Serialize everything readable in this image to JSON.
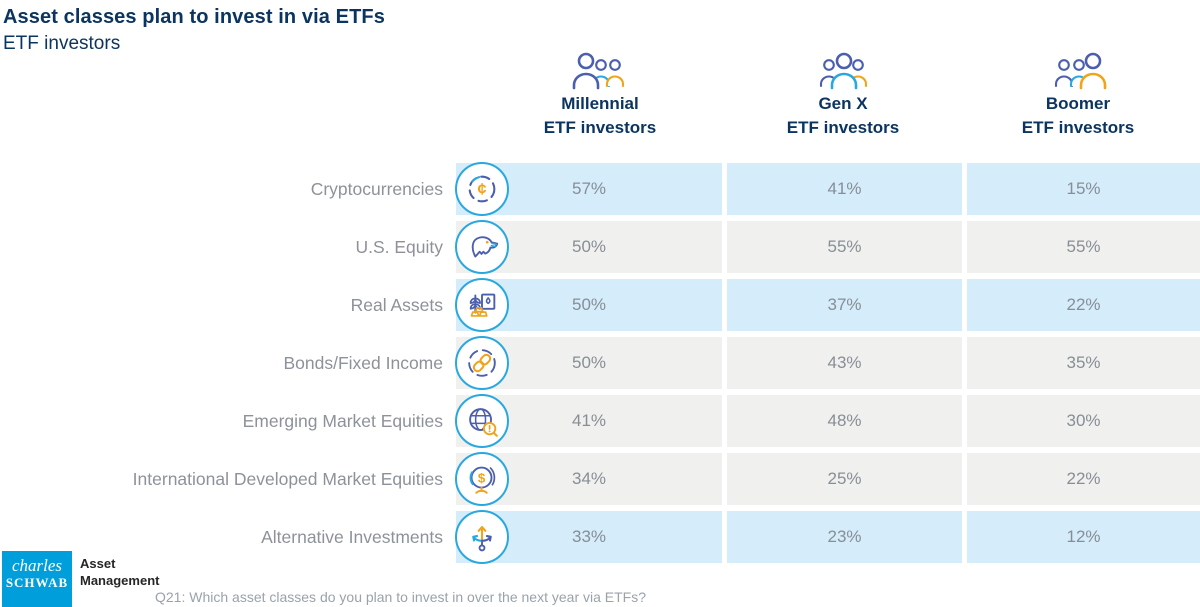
{
  "title": "Asset classes plan to invest in via ETFs",
  "subtitle": "ETF investors",
  "columns": [
    {
      "line1": "Millennial",
      "line2": "ETF investors",
      "icon": "millennial-group-icon",
      "highlight_index": 0
    },
    {
      "line1": "Gen X",
      "line2": "ETF investors",
      "icon": "genx-group-icon",
      "highlight_index": 1
    },
    {
      "line1": "Boomer",
      "line2": "ETF investors",
      "icon": "boomer-group-icon",
      "highlight_index": 2
    }
  ],
  "rows": [
    {
      "label": "Cryptocurrencies",
      "icon": "cryptocurrency-icon",
      "values": [
        "57%",
        "41%",
        "15%"
      ],
      "highlighted": true
    },
    {
      "label": "U.S. Equity",
      "icon": "eagle-icon",
      "values": [
        "50%",
        "55%",
        "55%"
      ],
      "highlighted": false
    },
    {
      "label": "Real Assets",
      "icon": "real-assets-icon",
      "values": [
        "50%",
        "37%",
        "22%"
      ],
      "highlighted": true
    },
    {
      "label": "Bonds/Fixed Income",
      "icon": "chain-link-icon",
      "values": [
        "50%",
        "43%",
        "35%"
      ],
      "highlighted": false
    },
    {
      "label": "Emerging Market Equities",
      "icon": "globe-magnifier-icon",
      "values": [
        "41%",
        "48%",
        "30%"
      ],
      "highlighted": false
    },
    {
      "label": "International Developed Market Equities",
      "icon": "globe-dollar-icon",
      "values": [
        "34%",
        "25%",
        "22%"
      ],
      "highlighted": false
    },
    {
      "label": "Alternative Investments",
      "icon": "branching-arrows-icon",
      "values": [
        "33%",
        "23%",
        "12%"
      ],
      "highlighted": true
    }
  ],
  "footer": {
    "logo_line1": "charles",
    "logo_line2": "SCHWAB",
    "brand": "Asset\nManagement",
    "question": "Q21: Which asset classes do you plan to invest in over the next year via ETFs?"
  },
  "colors": {
    "navy": "#0b3560",
    "cyan": "#29a8e0",
    "icon_blue": "#4b5fae",
    "orange": "#f0a419",
    "row_blue": "#d5ecfa",
    "row_gray": "#f0f0ef",
    "label_gray": "#8d929a",
    "value_gray": "#878e95",
    "logo_blue": "#009edb"
  },
  "chart_data": {
    "type": "table",
    "title": "Asset classes plan to invest in via ETFs",
    "subtitle": "ETF investors",
    "categories": [
      "Cryptocurrencies",
      "U.S. Equity",
      "Real Assets",
      "Bonds/Fixed Income",
      "Emerging Market Equities",
      "International Developed Market Equities",
      "Alternative Investments"
    ],
    "series": [
      {
        "name": "Millennial ETF investors",
        "values": [
          57,
          50,
          50,
          50,
          41,
          34,
          33
        ]
      },
      {
        "name": "Gen X ETF investors",
        "values": [
          41,
          55,
          37,
          43,
          48,
          25,
          23
        ]
      },
      {
        "name": "Boomer ETF investors",
        "values": [
          15,
          55,
          22,
          35,
          30,
          22,
          12
        ]
      }
    ],
    "unit": "%",
    "note": "Q21: Which asset classes do you plan to invest in over the next year via ETFs?"
  }
}
